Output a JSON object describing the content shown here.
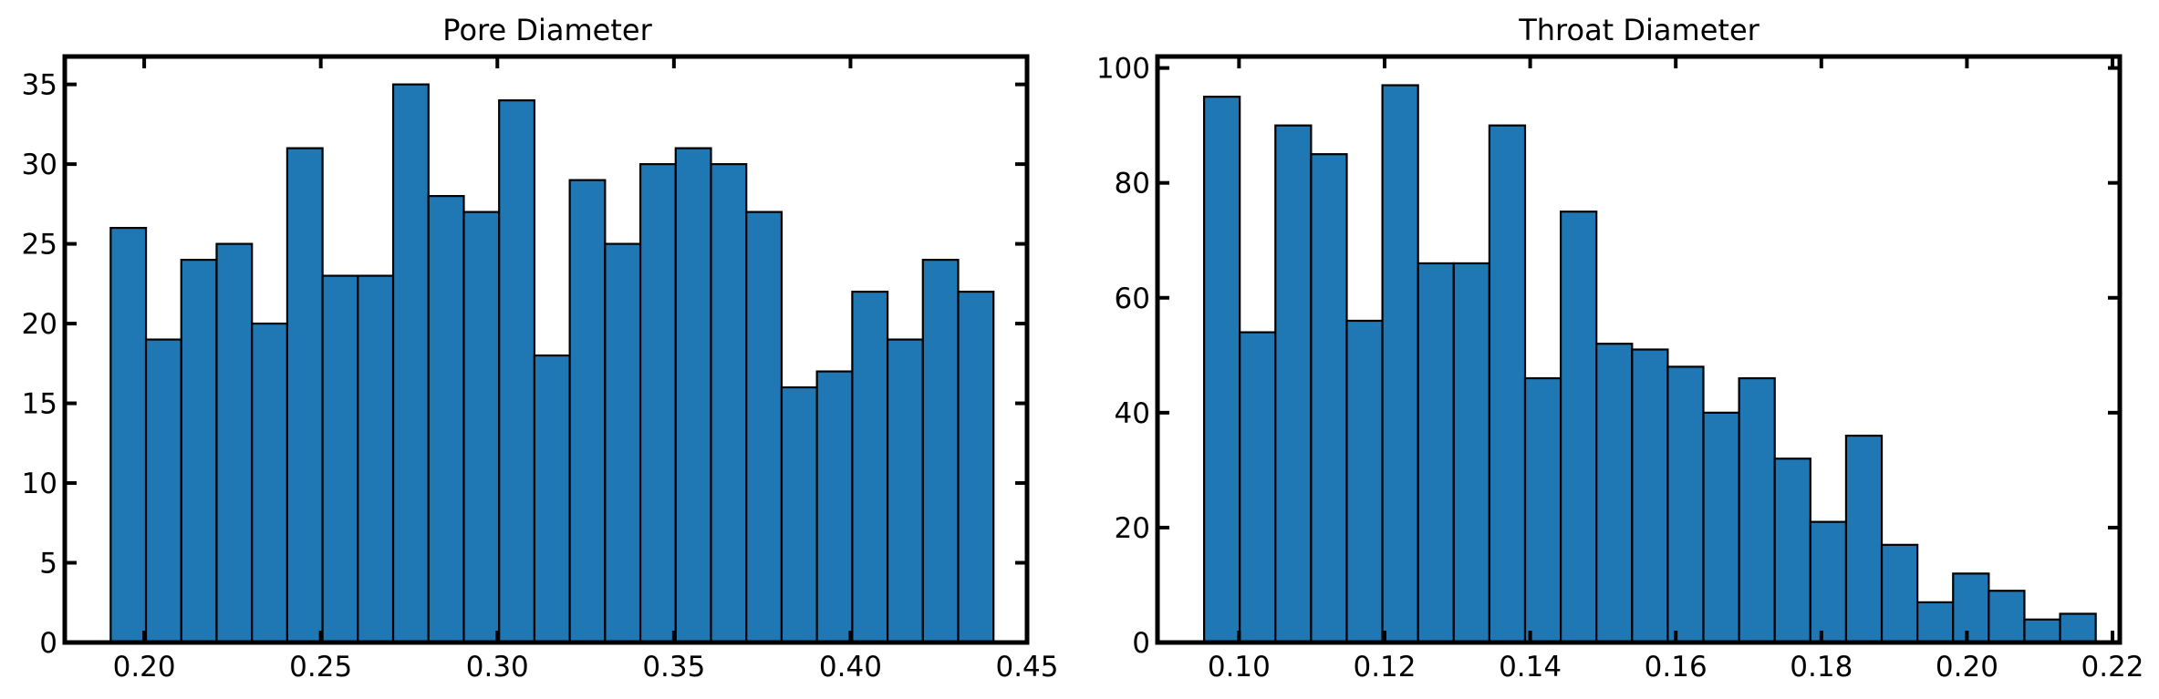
{
  "colors": {
    "bar_fill": "#1f77b4",
    "bar_edge": "#000000",
    "axis": "#000000"
  },
  "chart_data": [
    {
      "type": "bar",
      "histogram": true,
      "title": "Pore Diameter",
      "xlabel": "",
      "ylabel": "",
      "bin_edges": [
        0.1905,
        0.2005,
        0.2105,
        0.2205,
        0.2305,
        0.2405,
        0.2505,
        0.2605,
        0.2705,
        0.2805,
        0.2905,
        0.3005,
        0.3105,
        0.3205,
        0.3305,
        0.3405,
        0.3505,
        0.3605,
        0.3705,
        0.3805,
        0.3905,
        0.4005,
        0.4105,
        0.4205,
        0.4305,
        0.4405
      ],
      "values": [
        26,
        19,
        24,
        25,
        20,
        31,
        23,
        23,
        35,
        28,
        27,
        34,
        18,
        29,
        25,
        30,
        31,
        30,
        27,
        16,
        17,
        22,
        19,
        24,
        22
      ],
      "xlim": [
        0.1775,
        0.45
      ],
      "ylim": [
        0,
        36.75
      ],
      "xticks": [
        0.2,
        0.25,
        0.3,
        0.35,
        0.4,
        0.45
      ],
      "xtick_labels": [
        "0.20",
        "0.25",
        "0.30",
        "0.35",
        "0.40",
        "0.45"
      ],
      "yticks": [
        0,
        5,
        10,
        15,
        20,
        25,
        30,
        35
      ],
      "ytick_labels": [
        "0",
        "5",
        "10",
        "15",
        "20",
        "25",
        "30",
        "35"
      ],
      "grid": false,
      "legend": "none"
    },
    {
      "type": "bar",
      "histogram": true,
      "title": "Throat Diameter",
      "xlabel": "",
      "ylabel": "",
      "bin_edges": [
        0.0952,
        0.1001,
        0.105,
        0.1099,
        0.1148,
        0.1197,
        0.1246,
        0.1295,
        0.1344,
        0.1393,
        0.1442,
        0.1491,
        0.154,
        0.1589,
        0.1638,
        0.1687,
        0.1736,
        0.1785,
        0.1834,
        0.1883,
        0.1932,
        0.1981,
        0.203,
        0.2079,
        0.2128,
        0.2177
      ],
      "values": [
        95,
        54,
        90,
        85,
        56,
        97,
        66,
        66,
        90,
        46,
        75,
        52,
        51,
        48,
        40,
        46,
        32,
        21,
        36,
        17,
        7,
        12,
        9,
        4,
        5
      ],
      "xlim": [
        0.0888,
        0.221
      ],
      "ylim": [
        0,
        102
      ],
      "xticks": [
        0.1,
        0.12,
        0.14,
        0.16,
        0.18,
        0.2,
        0.22
      ],
      "xtick_labels": [
        "0.10",
        "0.12",
        "0.14",
        "0.16",
        "0.18",
        "0.20",
        "0.22"
      ],
      "yticks": [
        0,
        20,
        40,
        60,
        80,
        100
      ],
      "ytick_labels": [
        "0",
        "20",
        "40",
        "60",
        "80",
        "100"
      ],
      "grid": false,
      "legend": "none"
    }
  ]
}
